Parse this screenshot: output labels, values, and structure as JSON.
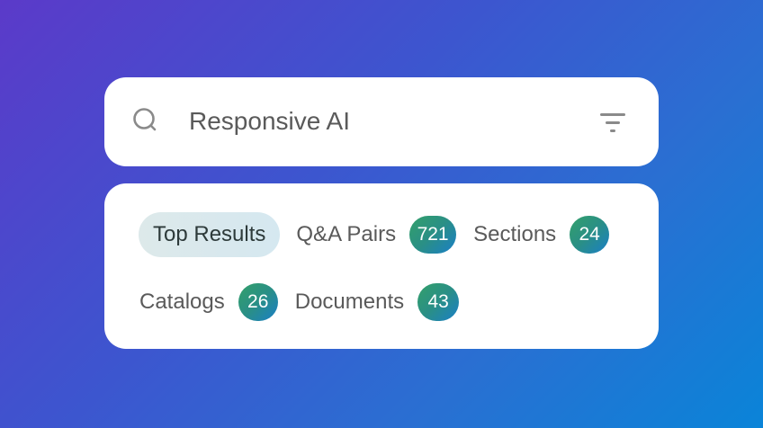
{
  "search": {
    "query": "Responsive AI",
    "icon": "search-icon",
    "filter_icon": "filter-icon"
  },
  "tabs": [
    {
      "label": "Top Results",
      "active": true
    },
    {
      "label": "Q&A Pairs",
      "count": "721"
    },
    {
      "label": "Sections",
      "count": "24"
    },
    {
      "label": "Catalogs",
      "count": "26"
    },
    {
      "label": "Documents",
      "count": "43"
    }
  ],
  "colors": {
    "badge_start": "#33a06a",
    "badge_end": "#1a7fc8",
    "active_chip": "#dde9ea"
  }
}
